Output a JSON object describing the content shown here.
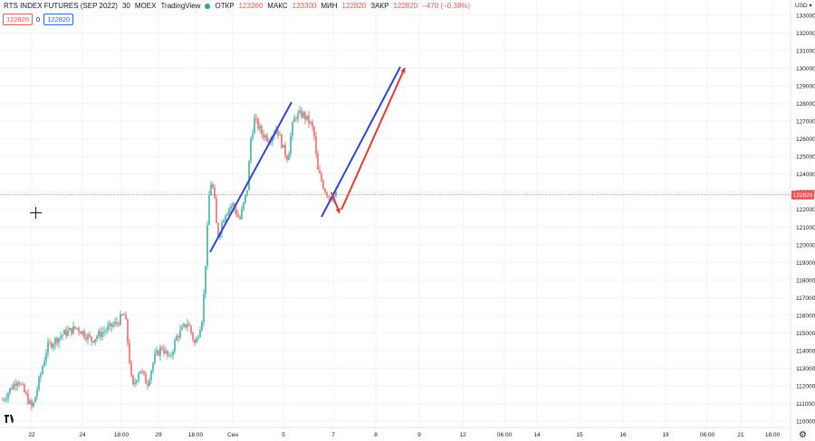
{
  "header": {
    "symbol": "RTS INDEX FUTURES (SEP 2022)",
    "interval": "30",
    "exchange": "MOEX",
    "source": "TradingView",
    "open_label": "ОТКР",
    "open_value": "123260",
    "high_label": "МАКС",
    "high_value": "123300",
    "low_label": "МИН",
    "low_value": "122820",
    "close_label": "ЗАКР",
    "close_value": "122820",
    "change": "−470 (−0.38%)"
  },
  "badges": {
    "sell": "122820",
    "spread": "0",
    "buy": "122820"
  },
  "currency": "USD",
  "colors": {
    "up": "#26a69a",
    "down": "#ef5350",
    "blue_line": "#2e44d6",
    "red_arrow": "#e53935",
    "price_line": "#ef5350",
    "grid": "#f0f3fa"
  },
  "icons": [
    "crosshair-icon",
    "tradingview-logo-icon",
    "settings-gear-icon",
    "chevron-down-icon"
  ],
  "chart_data": {
    "type": "candlestick",
    "y_axis": {
      "ylim": [
        109500,
        133500
      ],
      "ticks": [
        110000,
        111000,
        112000,
        113000,
        114000,
        115000,
        116000,
        117000,
        118000,
        119000,
        120000,
        121000,
        122000,
        123000,
        124000,
        125000,
        126000,
        127000,
        128000,
        129000,
        130000,
        131000,
        132000,
        133000
      ],
      "last_price": 122820
    },
    "x_axis": {
      "labels": [
        "22",
        "24",
        "18:00",
        "29",
        "18:00",
        "Сен",
        "5",
        "7",
        "8",
        "9",
        "12",
        "06:00",
        "14",
        "15",
        "16",
        "19",
        "06:00",
        "21",
        "18:00"
      ]
    },
    "price_anchors": [
      [
        0,
        111200
      ],
      [
        4,
        112400
      ],
      [
        8,
        110700
      ],
      [
        12,
        114200
      ],
      [
        16,
        114900
      ],
      [
        20,
        115300
      ],
      [
        24,
        114600
      ],
      [
        28,
        115200
      ],
      [
        31,
        115600
      ],
      [
        33,
        116100
      ],
      [
        35,
        111800
      ],
      [
        37,
        113000
      ],
      [
        39,
        112100
      ],
      [
        41,
        113600
      ],
      [
        43,
        114200
      ],
      [
        45,
        113500
      ],
      [
        47,
        114800
      ],
      [
        50,
        115600
      ],
      [
        52,
        114300
      ],
      [
        54,
        116000
      ],
      [
        55,
        119800
      ],
      [
        56,
        123700
      ],
      [
        57,
        123000
      ],
      [
        58,
        120400
      ],
      [
        60,
        121800
      ],
      [
        62,
        122300
      ],
      [
        64,
        121400
      ],
      [
        66,
        123100
      ],
      [
        67,
        126000
      ],
      [
        68,
        127100
      ],
      [
        70,
        126300
      ],
      [
        72,
        126000
      ],
      [
        74,
        126600
      ],
      [
        76,
        125300
      ],
      [
        77,
        124900
      ],
      [
        78,
        126500
      ],
      [
        79,
        127300
      ],
      [
        81,
        127400
      ],
      [
        83,
        126900
      ],
      [
        84,
        126400
      ],
      [
        85,
        124200
      ],
      [
        86,
        123700
      ],
      [
        87,
        123100
      ],
      [
        88,
        122800
      ],
      [
        89,
        122700
      ],
      [
        90,
        122820
      ]
    ],
    "drawings": [
      {
        "type": "trend_line",
        "color": "blue",
        "from": [
          120000,
          120000
        ],
        "to": [
          128000,
          128000
        ]
      },
      {
        "type": "trend_line",
        "color": "blue",
        "from": [
          121500,
          121500
        ],
        "to": [
          130000,
          130000
        ]
      },
      {
        "type": "arrow",
        "color": "red",
        "from_price": 123300,
        "to_price": 121800
      },
      {
        "type": "arrow",
        "color": "red",
        "from_price": 122000,
        "to_price": 129900
      }
    ]
  }
}
